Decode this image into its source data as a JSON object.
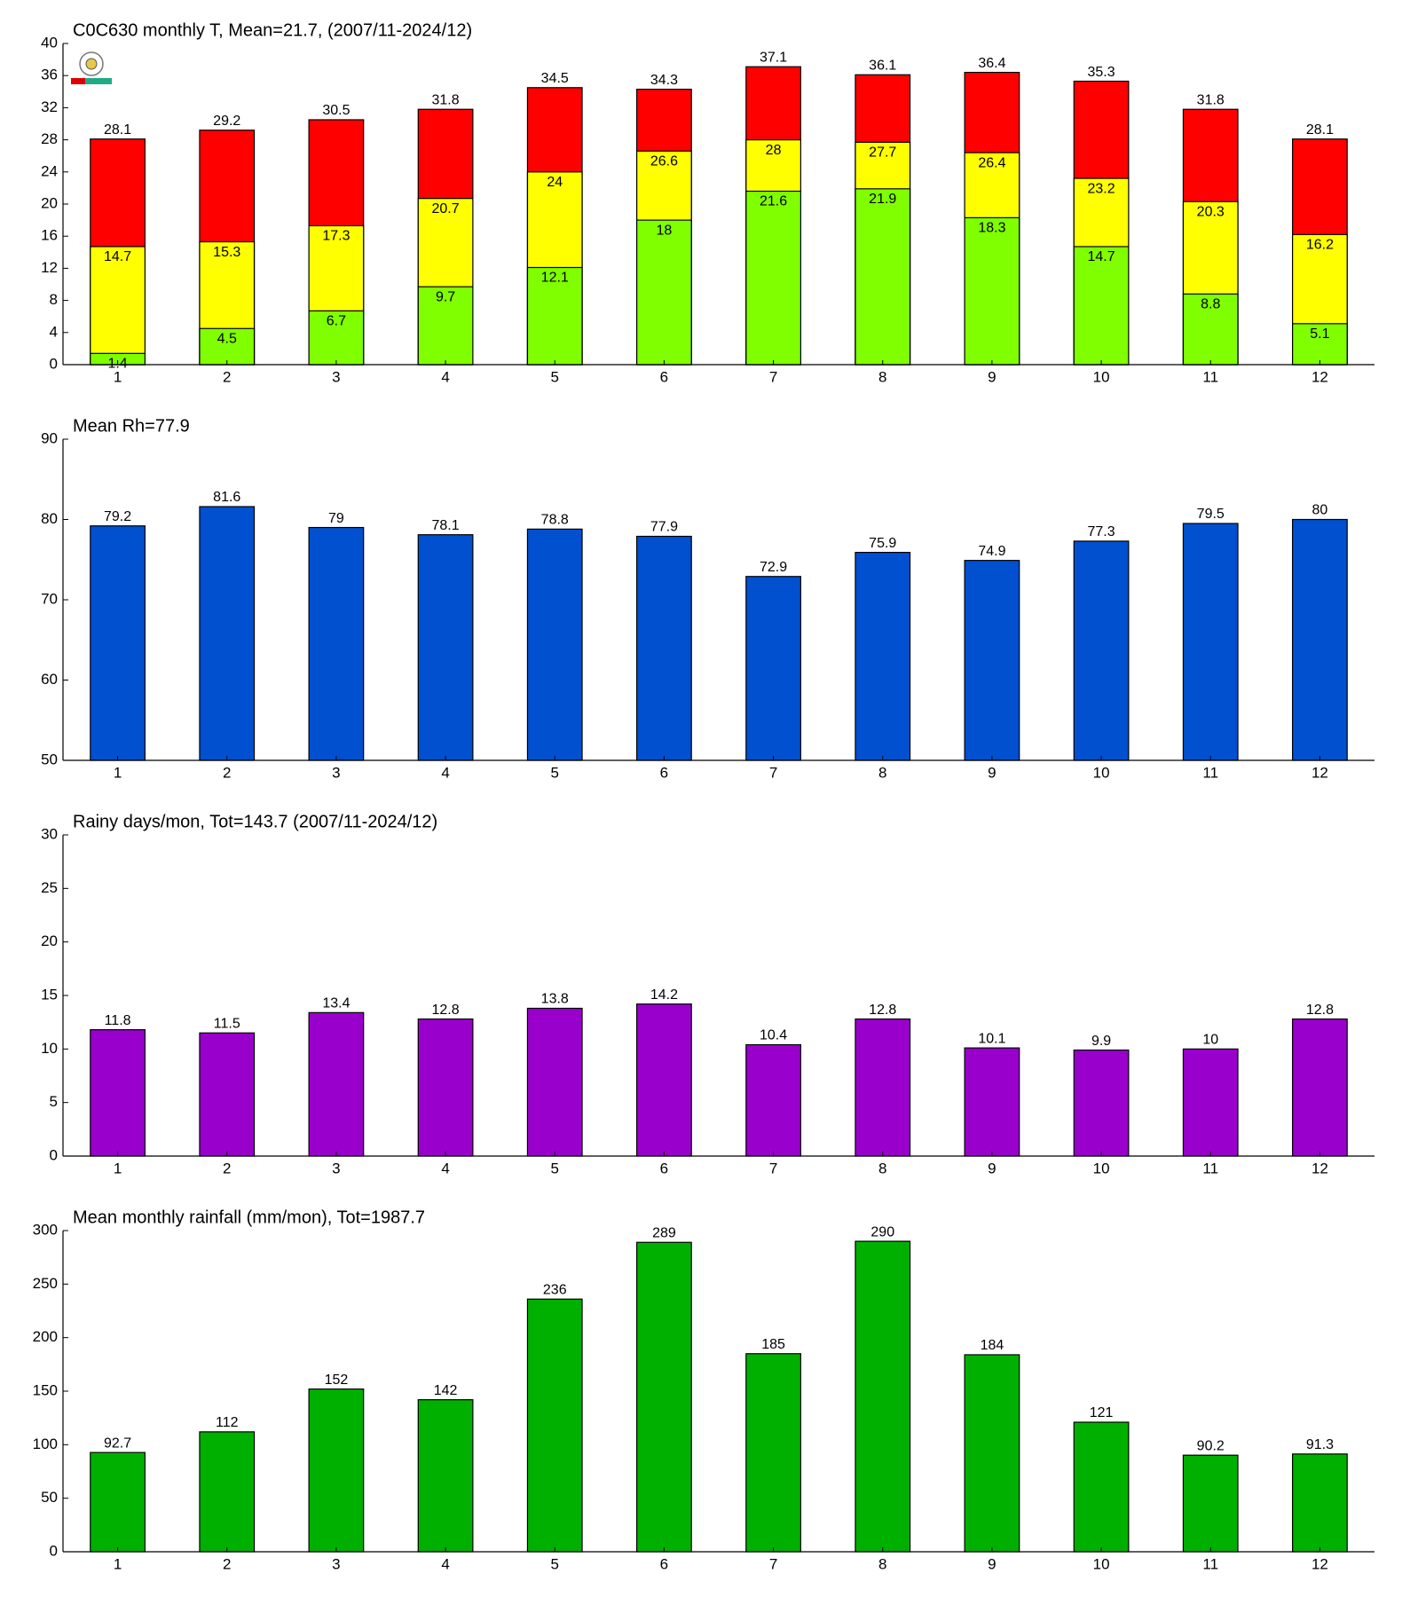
{
  "chart_data": [
    {
      "type": "bar",
      "title": "C0C630 monthly T, Mean=21.7, (2007/11-2024/12)",
      "categories": [
        "1",
        "2",
        "3",
        "4",
        "5",
        "6",
        "7",
        "8",
        "9",
        "10",
        "11",
        "12"
      ],
      "series": [
        {
          "color": "#ff0000",
          "values": [
            28.1,
            29.2,
            30.5,
            31.8,
            34.5,
            34.3,
            37.1,
            36.1,
            36.4,
            35.3,
            31.8,
            28.1
          ]
        },
        {
          "color": "#ffff00",
          "values": [
            14.7,
            15.3,
            17.3,
            20.7,
            24,
            26.6,
            28,
            27.7,
            26.4,
            23.2,
            20.3,
            16.2
          ]
        },
        {
          "color": "#80ff00",
          "values": [
            1.4,
            4.5,
            6.7,
            9.7,
            12.1,
            18,
            21.6,
            21.9,
            18.3,
            14.7,
            8.8,
            5.1
          ]
        }
      ],
      "ylim": [
        0,
        40
      ],
      "yticks": [
        0,
        4,
        8,
        12,
        16,
        20,
        24,
        28,
        32,
        36,
        40
      ]
    },
    {
      "type": "bar",
      "title": "Mean Rh=77.9",
      "categories": [
        "1",
        "2",
        "3",
        "4",
        "5",
        "6",
        "7",
        "8",
        "9",
        "10",
        "11",
        "12"
      ],
      "values": [
        79.2,
        81.6,
        79,
        78.1,
        78.8,
        77.9,
        72.9,
        75.9,
        74.9,
        77.3,
        79.5,
        80
      ],
      "color": "#0050d0",
      "ylim": [
        50,
        90
      ],
      "yticks": [
        50,
        60,
        70,
        80,
        90
      ]
    },
    {
      "type": "bar",
      "title": "Rainy days/mon, Tot=143.7 (2007/11-2024/12)",
      "categories": [
        "1",
        "2",
        "3",
        "4",
        "5",
        "6",
        "7",
        "8",
        "9",
        "10",
        "11",
        "12"
      ],
      "values": [
        11.8,
        11.5,
        13.4,
        12.8,
        13.8,
        14.2,
        10.4,
        12.8,
        10.1,
        9.9,
        10,
        12.8
      ],
      "color": "#9900cc",
      "ylim": [
        0,
        30
      ],
      "yticks": [
        0,
        5,
        10,
        15,
        20,
        25,
        30
      ]
    },
    {
      "type": "bar",
      "title": "Mean monthly rainfall (mm/mon), Tot=1987.7",
      "categories": [
        "1",
        "2",
        "3",
        "4",
        "5",
        "6",
        "7",
        "8",
        "9",
        "10",
        "11",
        "12"
      ],
      "values": [
        92.7,
        112,
        152,
        142,
        236,
        289,
        185,
        290,
        184,
        121,
        90.2,
        91.3
      ],
      "color": "#00b000",
      "ylim": [
        0,
        300
      ],
      "yticks": [
        0,
        50,
        100,
        150,
        200,
        250,
        300
      ]
    }
  ]
}
